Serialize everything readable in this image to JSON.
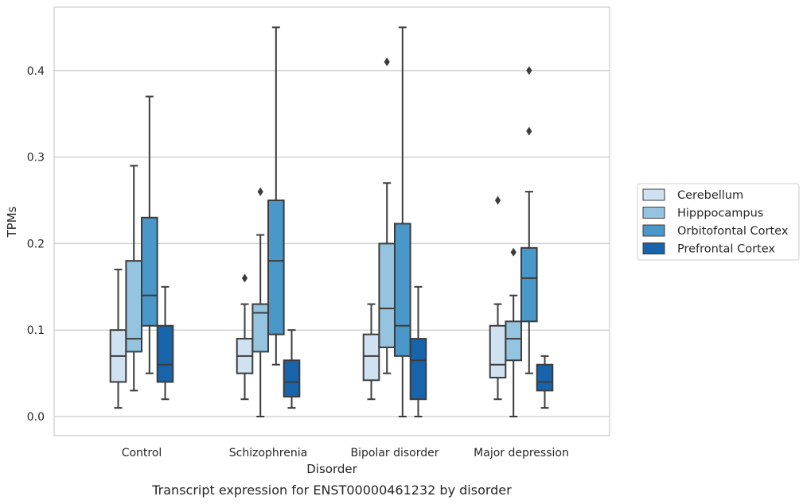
{
  "chart_data": {
    "type": "box",
    "xlabel": "Disorder",
    "ylabel": "TPMs",
    "caption": "Transcript expression for ENST00000461232 by disorder",
    "ylim": [
      -0.022,
      0.475
    ],
    "yticks": [
      "0.0",
      "0.1",
      "0.2",
      "0.3",
      "0.4"
    ],
    "ytick_values": [
      0.0,
      0.1,
      0.2,
      0.3,
      0.4
    ],
    "grid": "horizontal",
    "legend_position": "right",
    "categories": [
      "Control",
      "Schizophrenia",
      "Bipolar disorder",
      "Major depression"
    ],
    "series": [
      {
        "name": "Cerebellum",
        "color": "#d0e1f2",
        "boxes": [
          {
            "whislo": 0.01,
            "q1": 0.04,
            "med": 0.07,
            "q3": 0.1,
            "whishi": 0.17,
            "fliers": []
          },
          {
            "whislo": 0.02,
            "q1": 0.05,
            "med": 0.07,
            "q3": 0.09,
            "whishi": 0.13,
            "fliers": [
              0.16
            ]
          },
          {
            "whislo": 0.02,
            "q1": 0.042,
            "med": 0.07,
            "q3": 0.095,
            "whishi": 0.13,
            "fliers": []
          },
          {
            "whislo": 0.02,
            "q1": 0.045,
            "med": 0.06,
            "q3": 0.105,
            "whishi": 0.13,
            "fliers": [
              0.25
            ]
          }
        ]
      },
      {
        "name": "Hipppocampus",
        "color": "#94c4df",
        "boxes": [
          {
            "whislo": 0.03,
            "q1": 0.075,
            "med": 0.09,
            "q3": 0.18,
            "whishi": 0.29,
            "fliers": []
          },
          {
            "whislo": 0.0,
            "q1": 0.075,
            "med": 0.12,
            "q3": 0.13,
            "whishi": 0.21,
            "fliers": [
              0.26
            ]
          },
          {
            "whislo": 0.05,
            "q1": 0.08,
            "med": 0.125,
            "q3": 0.2,
            "whishi": 0.27,
            "fliers": [
              0.41
            ]
          },
          {
            "whislo": 0.0,
            "q1": 0.065,
            "med": 0.09,
            "q3": 0.11,
            "whishi": 0.14,
            "fliers": [
              0.19
            ]
          }
        ]
      },
      {
        "name": "Orbitofontal Cortex",
        "color": "#4a98c9",
        "boxes": [
          {
            "whislo": 0.05,
            "q1": 0.105,
            "med": 0.14,
            "q3": 0.23,
            "whishi": 0.37,
            "fliers": []
          },
          {
            "whislo": 0.06,
            "q1": 0.095,
            "med": 0.18,
            "q3": 0.25,
            "whishi": 0.45,
            "fliers": []
          },
          {
            "whislo": 0.0,
            "q1": 0.07,
            "med": 0.105,
            "q3": 0.223,
            "whishi": 0.45,
            "fliers": []
          },
          {
            "whislo": 0.05,
            "q1": 0.11,
            "med": 0.16,
            "q3": 0.195,
            "whishi": 0.26,
            "fliers": [
              0.33,
              0.4
            ]
          }
        ]
      },
      {
        "name": "Prefrontal Cortex",
        "color": "#1764ab",
        "boxes": [
          {
            "whislo": 0.02,
            "q1": 0.04,
            "med": 0.06,
            "q3": 0.105,
            "whishi": 0.15,
            "fliers": []
          },
          {
            "whislo": 0.01,
            "q1": 0.023,
            "med": 0.04,
            "q3": 0.065,
            "whishi": 0.1,
            "fliers": []
          },
          {
            "whislo": 0.0,
            "q1": 0.02,
            "med": 0.065,
            "q3": 0.09,
            "whishi": 0.15,
            "fliers": []
          },
          {
            "whislo": 0.01,
            "q1": 0.03,
            "med": 0.04,
            "q3": 0.06,
            "whishi": 0.07,
            "fliers": []
          }
        ]
      }
    ]
  }
}
